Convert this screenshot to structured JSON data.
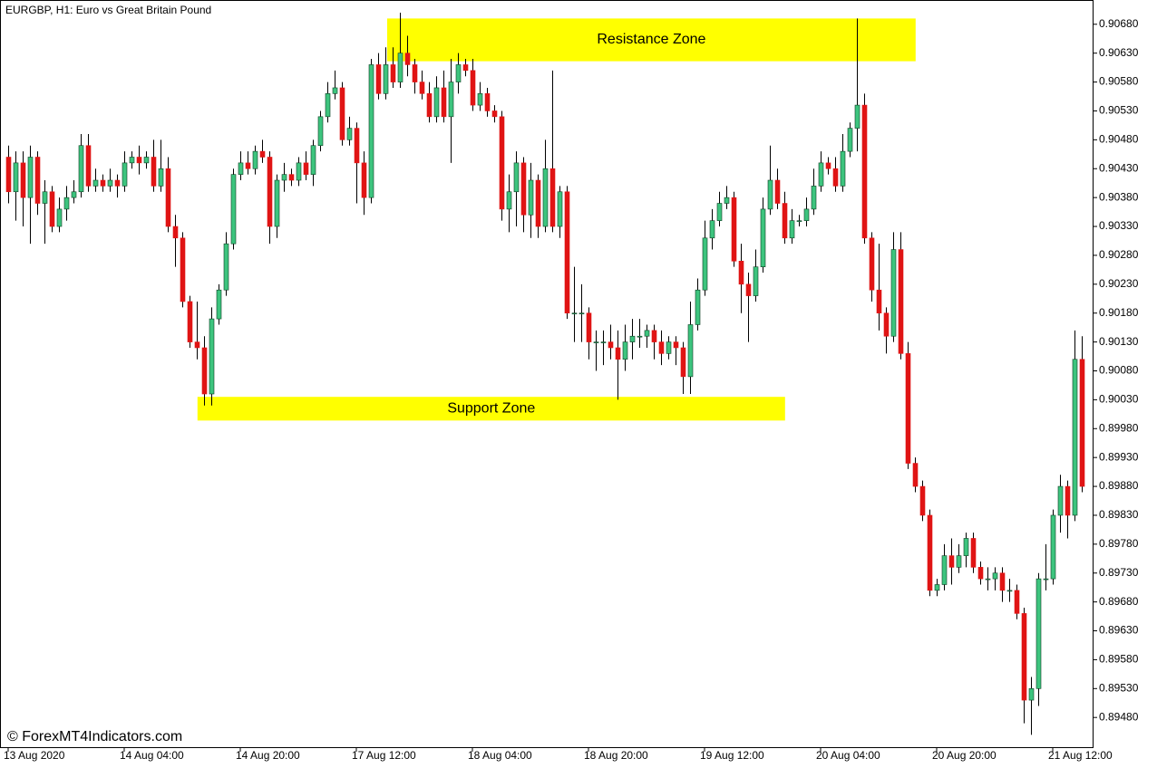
{
  "chart_data": {
    "type": "candlestick",
    "title": "EURGBP, H1:  Euro vs Great Britain Pound",
    "watermark": "© ForexMT4Indicators.com",
    "up_color": "#3dc47e",
    "down_color": "#e01414",
    "grid": false,
    "categories": [
      "13 Aug 2020",
      null,
      null,
      null,
      null,
      null,
      null,
      null,
      null,
      null,
      null,
      null,
      null,
      null,
      null,
      null,
      "14 Aug 04:00",
      null,
      null,
      null,
      null,
      null,
      null,
      null,
      null,
      null,
      null,
      null,
      null,
      null,
      null,
      null,
      "14 Aug 20:00",
      null,
      null,
      null,
      null,
      null,
      null,
      null,
      null,
      null,
      null,
      null,
      null,
      null,
      null,
      null,
      "17 Aug 12:00",
      null,
      null,
      null,
      null,
      null,
      null,
      null,
      null,
      null,
      null,
      null,
      null,
      null,
      null,
      null,
      "18 Aug 04:00",
      null,
      null,
      null,
      null,
      null,
      null,
      null,
      null,
      null,
      null,
      null,
      null,
      null,
      null,
      null,
      "18 Aug 20:00",
      null,
      null,
      null,
      null,
      null,
      null,
      null,
      null,
      null,
      null,
      null,
      null,
      null,
      null,
      null,
      "19 Aug 12:00",
      null,
      null,
      null,
      null,
      null,
      null,
      null,
      null,
      null,
      null,
      null,
      null,
      null,
      null,
      null,
      "20 Aug 04:00",
      null,
      null,
      null,
      null,
      null,
      null,
      null,
      null,
      null,
      null,
      null,
      null,
      null,
      null,
      null,
      "20 Aug 20:00",
      null,
      null,
      null,
      null,
      null,
      null,
      null,
      null,
      null,
      null,
      null,
      null,
      null,
      null,
      null,
      "21 Aug 12:00",
      null,
      null,
      null,
      null
    ],
    "open": [
      0.9045,
      0.9039,
      0.9044,
      0.9038,
      0.9045,
      0.9037,
      0.9039,
      0.9033,
      0.9036,
      0.9038,
      0.9039,
      0.9047,
      0.904,
      0.9041,
      0.904,
      0.9041,
      0.904,
      0.9044,
      0.9045,
      0.9044,
      0.9045,
      0.904,
      0.9043,
      0.9033,
      0.9031,
      0.902,
      0.9013,
      0.9012,
      0.9004,
      0.9017,
      0.9022,
      0.903,
      0.9042,
      0.9044,
      0.9043,
      0.9046,
      0.9045,
      0.9033,
      0.9041,
      0.9042,
      0.9041,
      0.9044,
      0.9042,
      0.9047,
      0.9052,
      0.9056,
      0.9057,
      0.9048,
      0.905,
      0.9044,
      0.9038,
      0.9061,
      0.9056,
      0.9061,
      0.9058,
      0.9063,
      0.9061,
      0.9058,
      0.9056,
      0.9052,
      0.9057,
      0.9052,
      0.9058,
      0.9061,
      0.906,
      0.9054,
      0.9056,
      0.9053,
      0.9052,
      0.9036,
      0.9039,
      0.9044,
      0.9035,
      0.9041,
      0.9033,
      0.9043,
      0.9033,
      0.9039,
      0.9018,
      0.9018,
      0.9018,
      0.9013,
      0.9013,
      0.9013,
      0.9012,
      0.901,
      0.9013,
      0.9014,
      0.9014,
      0.9015,
      0.9013,
      0.9011,
      0.9013,
      0.9012,
      0.9007,
      0.9016,
      0.9022,
      0.9031,
      0.9034,
      0.9037,
      0.9038,
      0.9027,
      0.9023,
      0.9021,
      0.9026,
      0.9036,
      0.9041,
      0.9037,
      0.9031,
      0.9034,
      0.9034,
      0.9036,
      0.904,
      0.9044,
      0.9043,
      0.904,
      0.9046,
      0.905,
      0.9054,
      0.9031,
      0.9022,
      0.9018,
      0.9014,
      0.9029,
      0.9011,
      0.8992,
      0.8988,
      0.8983,
      0.897,
      0.8971,
      0.8976,
      0.8974,
      0.8976,
      0.8979,
      0.8974,
      0.8972,
      0.8972,
      0.8973,
      0.897,
      0.897,
      0.8966,
      0.8951,
      0.8953,
      0.8972,
      0.8972,
      0.8983,
      0.8988,
      0.8983,
      0.901
    ],
    "high": [
      0.9047,
      0.9046,
      0.9046,
      0.9047,
      0.9046,
      0.9041,
      0.904,
      0.9038,
      0.904,
      0.9041,
      0.9049,
      0.9049,
      0.9043,
      0.9042,
      0.9043,
      0.9042,
      0.9046,
      0.9046,
      0.9047,
      0.9046,
      0.9048,
      0.9048,
      0.9045,
      0.9035,
      0.9032,
      0.9021,
      0.902,
      0.9014,
      0.9019,
      0.9023,
      0.9032,
      0.9043,
      0.9046,
      0.9046,
      0.9047,
      0.9048,
      0.9046,
      0.9042,
      0.9044,
      0.9043,
      0.9045,
      0.9046,
      0.9048,
      0.9053,
      0.9058,
      0.906,
      0.9058,
      0.9052,
      0.9051,
      0.9046,
      0.9062,
      0.9063,
      0.9064,
      0.9064,
      0.907,
      0.9066,
      0.9062,
      0.906,
      0.9058,
      0.9059,
      0.906,
      0.9062,
      0.9063,
      0.9062,
      0.9062,
      0.9058,
      0.9057,
      0.9054,
      0.9053,
      0.9042,
      0.9046,
      0.9045,
      0.9044,
      0.9042,
      0.9048,
      0.906,
      0.904,
      0.904,
      0.9026,
      0.9023,
      0.9019,
      0.9015,
      0.9015,
      0.9016,
      0.9015,
      0.9016,
      0.9017,
      0.9017,
      0.9016,
      0.9016,
      0.9015,
      0.9014,
      0.9014,
      0.9013,
      0.902,
      0.9024,
      0.9034,
      0.9036,
      0.9039,
      0.904,
      0.9039,
      0.903,
      0.9025,
      0.9029,
      0.9038,
      0.9047,
      0.9043,
      0.9039,
      0.9036,
      0.9035,
      0.9038,
      0.9043,
      0.9046,
      0.9045,
      0.9045,
      0.9049,
      0.9051,
      0.9069,
      0.9056,
      0.9032,
      0.903,
      0.9019,
      0.9032,
      0.9032,
      0.9013,
      0.8993,
      0.8989,
      0.8984,
      0.8972,
      0.8978,
      0.8979,
      0.8978,
      0.898,
      0.898,
      0.8975,
      0.8974,
      0.8974,
      0.8974,
      0.8972,
      0.8971,
      0.8967,
      0.8955,
      0.8973,
      0.8978,
      0.8984,
      0.899,
      0.8989,
      0.9015,
      0.9014
    ],
    "low": [
      0.9037,
      0.9034,
      0.9033,
      0.903,
      0.9035,
      0.903,
      0.9032,
      0.9032,
      0.9034,
      0.9037,
      0.9038,
      0.9039,
      0.9039,
      0.9039,
      0.9039,
      0.9038,
      0.9039,
      0.9043,
      0.9042,
      0.9043,
      0.9039,
      0.9039,
      0.9032,
      0.9026,
      0.9019,
      0.9012,
      0.901,
      0.9002,
      0.9002,
      0.9016,
      0.9021,
      0.9029,
      0.9041,
      0.9042,
      0.9042,
      0.9044,
      0.903,
      0.9031,
      0.9039,
      0.904,
      0.904,
      0.9041,
      0.904,
      0.9046,
      0.9051,
      0.9055,
      0.9047,
      0.9047,
      0.9037,
      0.9035,
      0.9037,
      0.9055,
      0.9055,
      0.9057,
      0.9057,
      0.9059,
      0.9056,
      0.9055,
      0.9051,
      0.9051,
      0.9051,
      0.9044,
      0.9056,
      0.9059,
      0.9053,
      0.9053,
      0.9052,
      0.9051,
      0.9034,
      0.9032,
      0.9033,
      0.9032,
      0.9031,
      0.9031,
      0.9032,
      0.9032,
      0.9031,
      0.9017,
      0.9013,
      0.9013,
      0.901,
      0.9008,
      0.9009,
      0.901,
      0.9003,
      0.9008,
      0.901,
      0.9012,
      0.9012,
      0.901,
      0.9009,
      0.901,
      0.9009,
      0.9004,
      0.9004,
      0.9015,
      0.9021,
      0.9029,
      0.9033,
      0.9036,
      0.9026,
      0.9018,
      0.9013,
      0.902,
      0.9025,
      0.9035,
      0.9036,
      0.903,
      0.903,
      0.9033,
      0.9033,
      0.9035,
      0.9039,
      0.9042,
      0.9039,
      0.9039,
      0.9045,
      0.9046,
      0.903,
      0.902,
      0.9015,
      0.9011,
      0.9013,
      0.901,
      0.8991,
      0.8987,
      0.8982,
      0.8969,
      0.8969,
      0.897,
      0.8971,
      0.8973,
      0.8974,
      0.8973,
      0.8971,
      0.897,
      0.897,
      0.8968,
      0.8968,
      0.8965,
      0.8947,
      0.8945,
      0.895,
      0.897,
      0.8971,
      0.898,
      0.8979,
      0.8982,
      0.8987
    ],
    "close": [
      0.9039,
      0.9044,
      0.9038,
      0.9045,
      0.9037,
      0.9039,
      0.9033,
      0.9036,
      0.9038,
      0.9039,
      0.9047,
      0.904,
      0.9041,
      0.904,
      0.9041,
      0.904,
      0.9044,
      0.9045,
      0.9044,
      0.9045,
      0.904,
      0.9043,
      0.9033,
      0.9031,
      0.902,
      0.9013,
      0.9012,
      0.9004,
      0.9017,
      0.9022,
      0.903,
      0.9042,
      0.9044,
      0.9043,
      0.9046,
      0.9045,
      0.9033,
      0.9041,
      0.9042,
      0.9041,
      0.9044,
      0.9042,
      0.9047,
      0.9052,
      0.9056,
      0.9057,
      0.9048,
      0.905,
      0.9044,
      0.9038,
      0.9061,
      0.9056,
      0.9061,
      0.9058,
      0.9063,
      0.9061,
      0.9058,
      0.9056,
      0.9052,
      0.9057,
      0.9052,
      0.9058,
      0.9061,
      0.906,
      0.9054,
      0.9056,
      0.9053,
      0.9052,
      0.9036,
      0.9039,
      0.9044,
      0.9035,
      0.9041,
      0.9033,
      0.9043,
      0.9033,
      0.9039,
      0.9018,
      0.9018,
      0.9018,
      0.9013,
      0.9013,
      0.9013,
      0.9012,
      0.901,
      0.9013,
      0.9014,
      0.9014,
      0.9015,
      0.9013,
      0.9011,
      0.9013,
      0.9012,
      0.9007,
      0.9016,
      0.9022,
      0.9031,
      0.9034,
      0.9037,
      0.9038,
      0.9027,
      0.9023,
      0.9021,
      0.9026,
      0.9036,
      0.9041,
      0.9037,
      0.9031,
      0.9034,
      0.9034,
      0.9036,
      0.904,
      0.9044,
      0.9043,
      0.904,
      0.9046,
      0.905,
      0.9054,
      0.9031,
      0.9022,
      0.9018,
      0.9014,
      0.9029,
      0.9011,
      0.8992,
      0.8988,
      0.8983,
      0.897,
      0.8971,
      0.8976,
      0.8974,
      0.8976,
      0.8979,
      0.8974,
      0.8972,
      0.8972,
      0.8973,
      0.897,
      0.897,
      0.8966,
      0.8951,
      0.8953,
      0.8972,
      0.8972,
      0.8983,
      0.8988,
      0.8983,
      0.901,
      0.8988
    ],
    "ylim": [
      0.89427,
      0.90722
    ],
    "yticks": [
      {
        "value": 0.9068,
        "label": "0.90680"
      },
      {
        "value": 0.9063,
        "label": "0.90630"
      },
      {
        "value": 0.9058,
        "label": "0.90580"
      },
      {
        "value": 0.9053,
        "label": "0.90530"
      },
      {
        "value": 0.9048,
        "label": "0.90480"
      },
      {
        "value": 0.9043,
        "label": "0.90430"
      },
      {
        "value": 0.9038,
        "label": "0.90380"
      },
      {
        "value": 0.9033,
        "label": "0.90330"
      },
      {
        "value": 0.9028,
        "label": "0.90280"
      },
      {
        "value": 0.9023,
        "label": "0.90230"
      },
      {
        "value": 0.9018,
        "label": "0.90180"
      },
      {
        "value": 0.9013,
        "label": "0.90130"
      },
      {
        "value": 0.9008,
        "label": "0.90080"
      },
      {
        "value": 0.9003,
        "label": "0.90030"
      },
      {
        "value": 0.8998,
        "label": "0.89980"
      },
      {
        "value": 0.8993,
        "label": "0.89930"
      },
      {
        "value": 0.8988,
        "label": "0.89880"
      },
      {
        "value": 0.8983,
        "label": "0.89830"
      },
      {
        "value": 0.8978,
        "label": "0.89780"
      },
      {
        "value": 0.8973,
        "label": "0.89730"
      },
      {
        "value": 0.8968,
        "label": "0.89680"
      },
      {
        "value": 0.8963,
        "label": "0.89630"
      },
      {
        "value": 0.8958,
        "label": "0.89580"
      },
      {
        "value": 0.8953,
        "label": "0.89530"
      },
      {
        "value": 0.8948,
        "label": "0.89480"
      }
    ],
    "zones": [
      {
        "label": "Resistance Zone",
        "color": "#ffff00",
        "x": [
          52.25,
          125.1
        ],
        "y": [
          0.90616,
          0.9069
        ]
      },
      {
        "label": "Support Zone",
        "color": "#ffff00",
        "x": [
          26.1,
          107.1
        ],
        "y": [
          0.89994,
          0.90035
        ]
      }
    ]
  }
}
